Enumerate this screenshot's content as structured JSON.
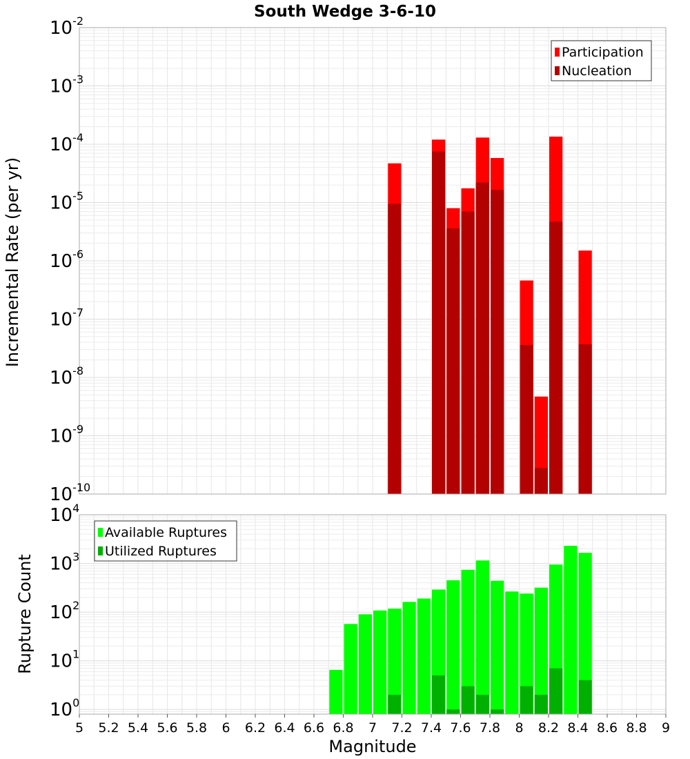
{
  "chart_data": [
    {
      "type": "bar",
      "title": "South Wedge 3-6-10",
      "xlabel": "",
      "ylabel": "Incremental Rate (per yr)",
      "yscale": "log",
      "ylim": [
        1e-10,
        0.01
      ],
      "xlim": [
        5,
        9
      ],
      "legend": "top-right",
      "grid": true,
      "bar_mode": "overlay",
      "series": [
        {
          "name": "Participation",
          "color": "#ff0000",
          "x": [
            7.15,
            7.45,
            7.55,
            7.65,
            7.75,
            7.85,
            8.05,
            8.15,
            8.25,
            8.45
          ],
          "values": [
            4.7e-05,
            0.00012,
            8e-06,
            1.75e-05,
            0.00013,
            5.8e-05,
            4.6e-07,
            4.7e-09,
            0.000135,
            1.5e-06
          ]
        },
        {
          "name": "Nucleation",
          "color": "#b30000",
          "x": [
            7.15,
            7.45,
            7.55,
            7.65,
            7.75,
            7.85,
            8.05,
            8.15,
            8.25,
            8.45
          ],
          "values": [
            9.5e-06,
            7.5e-05,
            3.6e-06,
            7e-06,
            2.2e-05,
            1.65e-05,
            3.6e-08,
            2.8e-10,
            4.7e-06,
            3.7e-08
          ]
        }
      ]
    },
    {
      "type": "bar",
      "title": "",
      "xlabel": "Magnitude",
      "ylabel": "Rupture Count",
      "yscale": "log",
      "ylim": [
        0.8,
        10000
      ],
      "xlim": [
        5,
        9
      ],
      "xticks": [
        "5",
        "5.2",
        "5.4",
        "5.6",
        "5.8",
        "6",
        "6.2",
        "6.4",
        "6.6",
        "6.8",
        "7",
        "7.2",
        "7.4",
        "7.6",
        "7.8",
        "8",
        "8.2",
        "8.4",
        "8.6",
        "8.8",
        "9"
      ],
      "legend": "top-left",
      "grid": true,
      "bar_mode": "overlay",
      "series": [
        {
          "name": "Available Ruptures",
          "color": "#00ff00",
          "x": [
            6.75,
            6.85,
            6.95,
            7.05,
            7.15,
            7.25,
            7.35,
            7.45,
            7.55,
            7.65,
            7.75,
            7.85,
            7.95,
            8.05,
            8.15,
            8.25,
            8.35,
            8.45
          ],
          "values": [
            6.5,
            57,
            90,
            108,
            118,
            162,
            190,
            290,
            450,
            740,
            1150,
            440,
            265,
            240,
            318,
            950,
            2300,
            1650
          ]
        },
        {
          "name": "Utilized Ruptures",
          "color": "#00b000",
          "x": [
            7.15,
            7.45,
            7.55,
            7.65,
            7.75,
            7.85,
            8.05,
            8.15,
            8.25,
            8.45
          ],
          "values": [
            2,
            5,
            1,
            3,
            2,
            1,
            3,
            2,
            7,
            4
          ]
        }
      ]
    }
  ]
}
